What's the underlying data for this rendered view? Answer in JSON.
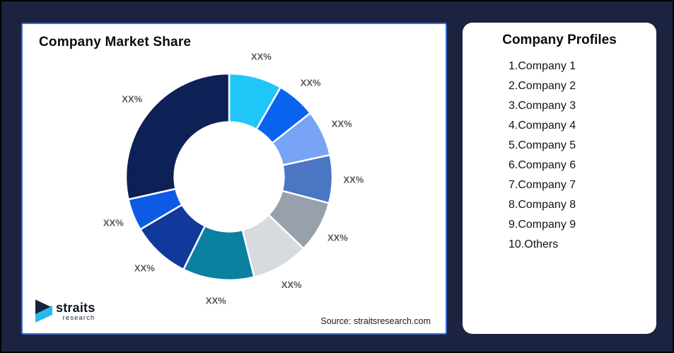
{
  "colors": {
    "background_navy": "#1B2341",
    "card_border_blue": "#3E6BDB",
    "slice_label_gray": "#595959",
    "logo_navy": "#14233E",
    "logo_cyan": "#29B9E9"
  },
  "left_card": {
    "title": "Company Market Share",
    "source": "Source: straitsresearch.com"
  },
  "logo": {
    "name": "straits",
    "sub": "research"
  },
  "right_card": {
    "title": "Company Profiles",
    "items": [
      "1.Company 1",
      "2.Company 2",
      "3.Company 3",
      "4.Company 4",
      "5.Company 5",
      "6.Company 6",
      "7.Company 7",
      "8.Company 8",
      "9.Company 9",
      "10.Others"
    ]
  },
  "chart_data": {
    "type": "pie",
    "subtype": "donut",
    "title": "Company Market Share",
    "inner_radius_ratio": 0.53,
    "start_angle_deg": 0,
    "direction": "clockwise",
    "legend_position": "none",
    "notes": "Slice values are masked as XX% in the source image; numeric values below are estimated from arc angles.",
    "slices": [
      {
        "name": "Company 1",
        "label": "XX%",
        "value": 8.3,
        "color": "#1FC7F9"
      },
      {
        "name": "Company 2",
        "label": "XX%",
        "value": 6.1,
        "color": "#0A63EE"
      },
      {
        "name": "Company 3",
        "label": "XX%",
        "value": 7.2,
        "color": "#77A4F4"
      },
      {
        "name": "Company 4",
        "label": "XX%",
        "value": 7.5,
        "color": "#4A76C4"
      },
      {
        "name": "Company 5",
        "label": "XX%",
        "value": 8.1,
        "color": "#98A0AC"
      },
      {
        "name": "Company 6",
        "label": "XX%",
        "value": 8.9,
        "color": "#D7DADF"
      },
      {
        "name": "Company 7",
        "label": "XX%",
        "value": 11.2,
        "color": "#0B80A0"
      },
      {
        "name": "Company 8",
        "label": "XX%",
        "value": 9.2,
        "color": "#10399B"
      },
      {
        "name": "Company 9",
        "label": "XX%",
        "value": 5.0,
        "color": "#0D5BE5"
      },
      {
        "name": "Others",
        "label": "XX%",
        "value": 28.5,
        "color": "#0E2156"
      }
    ]
  }
}
